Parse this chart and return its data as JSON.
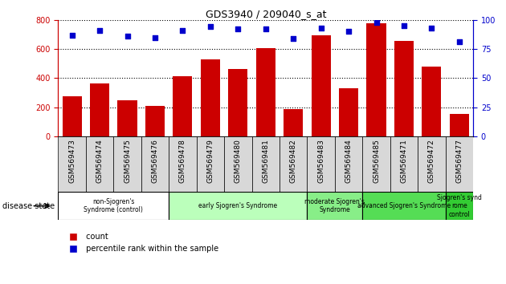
{
  "title": "GDS3940 / 209040_s_at",
  "samples": [
    "GSM569473",
    "GSM569474",
    "GSM569475",
    "GSM569476",
    "GSM569478",
    "GSM569479",
    "GSM569480",
    "GSM569481",
    "GSM569482",
    "GSM569483",
    "GSM569484",
    "GSM569485",
    "GSM569471",
    "GSM569472",
    "GSM569477"
  ],
  "counts": [
    275,
    365,
    248,
    210,
    415,
    530,
    462,
    605,
    185,
    695,
    330,
    775,
    655,
    480,
    152
  ],
  "percentiles": [
    87,
    91,
    86,
    85,
    91,
    94,
    92,
    92,
    84,
    93,
    90,
    98,
    95,
    93,
    81
  ],
  "groups": [
    {
      "label": "non-Sjogren's\nSyndrome (control)",
      "start": 0,
      "end": 4,
      "color": "#ffffff"
    },
    {
      "label": "early Sjogren's Syndrome",
      "start": 4,
      "end": 9,
      "color": "#bbffbb"
    },
    {
      "label": "moderate Sjogren's\nSyndrome",
      "start": 9,
      "end": 11,
      "color": "#88ee88"
    },
    {
      "label": "advanced Sjogren's Syndrome",
      "start": 11,
      "end": 14,
      "color": "#55dd55"
    },
    {
      "label": "Sjogren's synd\nrome\ncontrol",
      "start": 14,
      "end": 15,
      "color": "#33cc33"
    }
  ],
  "bar_color": "#cc0000",
  "dot_color": "#0000cc",
  "ylim_left": [
    0,
    800
  ],
  "ylim_right": [
    0,
    100
  ],
  "yticks_left": [
    0,
    200,
    400,
    600,
    800
  ],
  "yticks_right": [
    0,
    25,
    50,
    75,
    100
  ],
  "left_axis_color": "#cc0000",
  "right_axis_color": "#0000cc",
  "ticklabel_bg": "#d8d8d8",
  "plot_bg": "#ffffff"
}
